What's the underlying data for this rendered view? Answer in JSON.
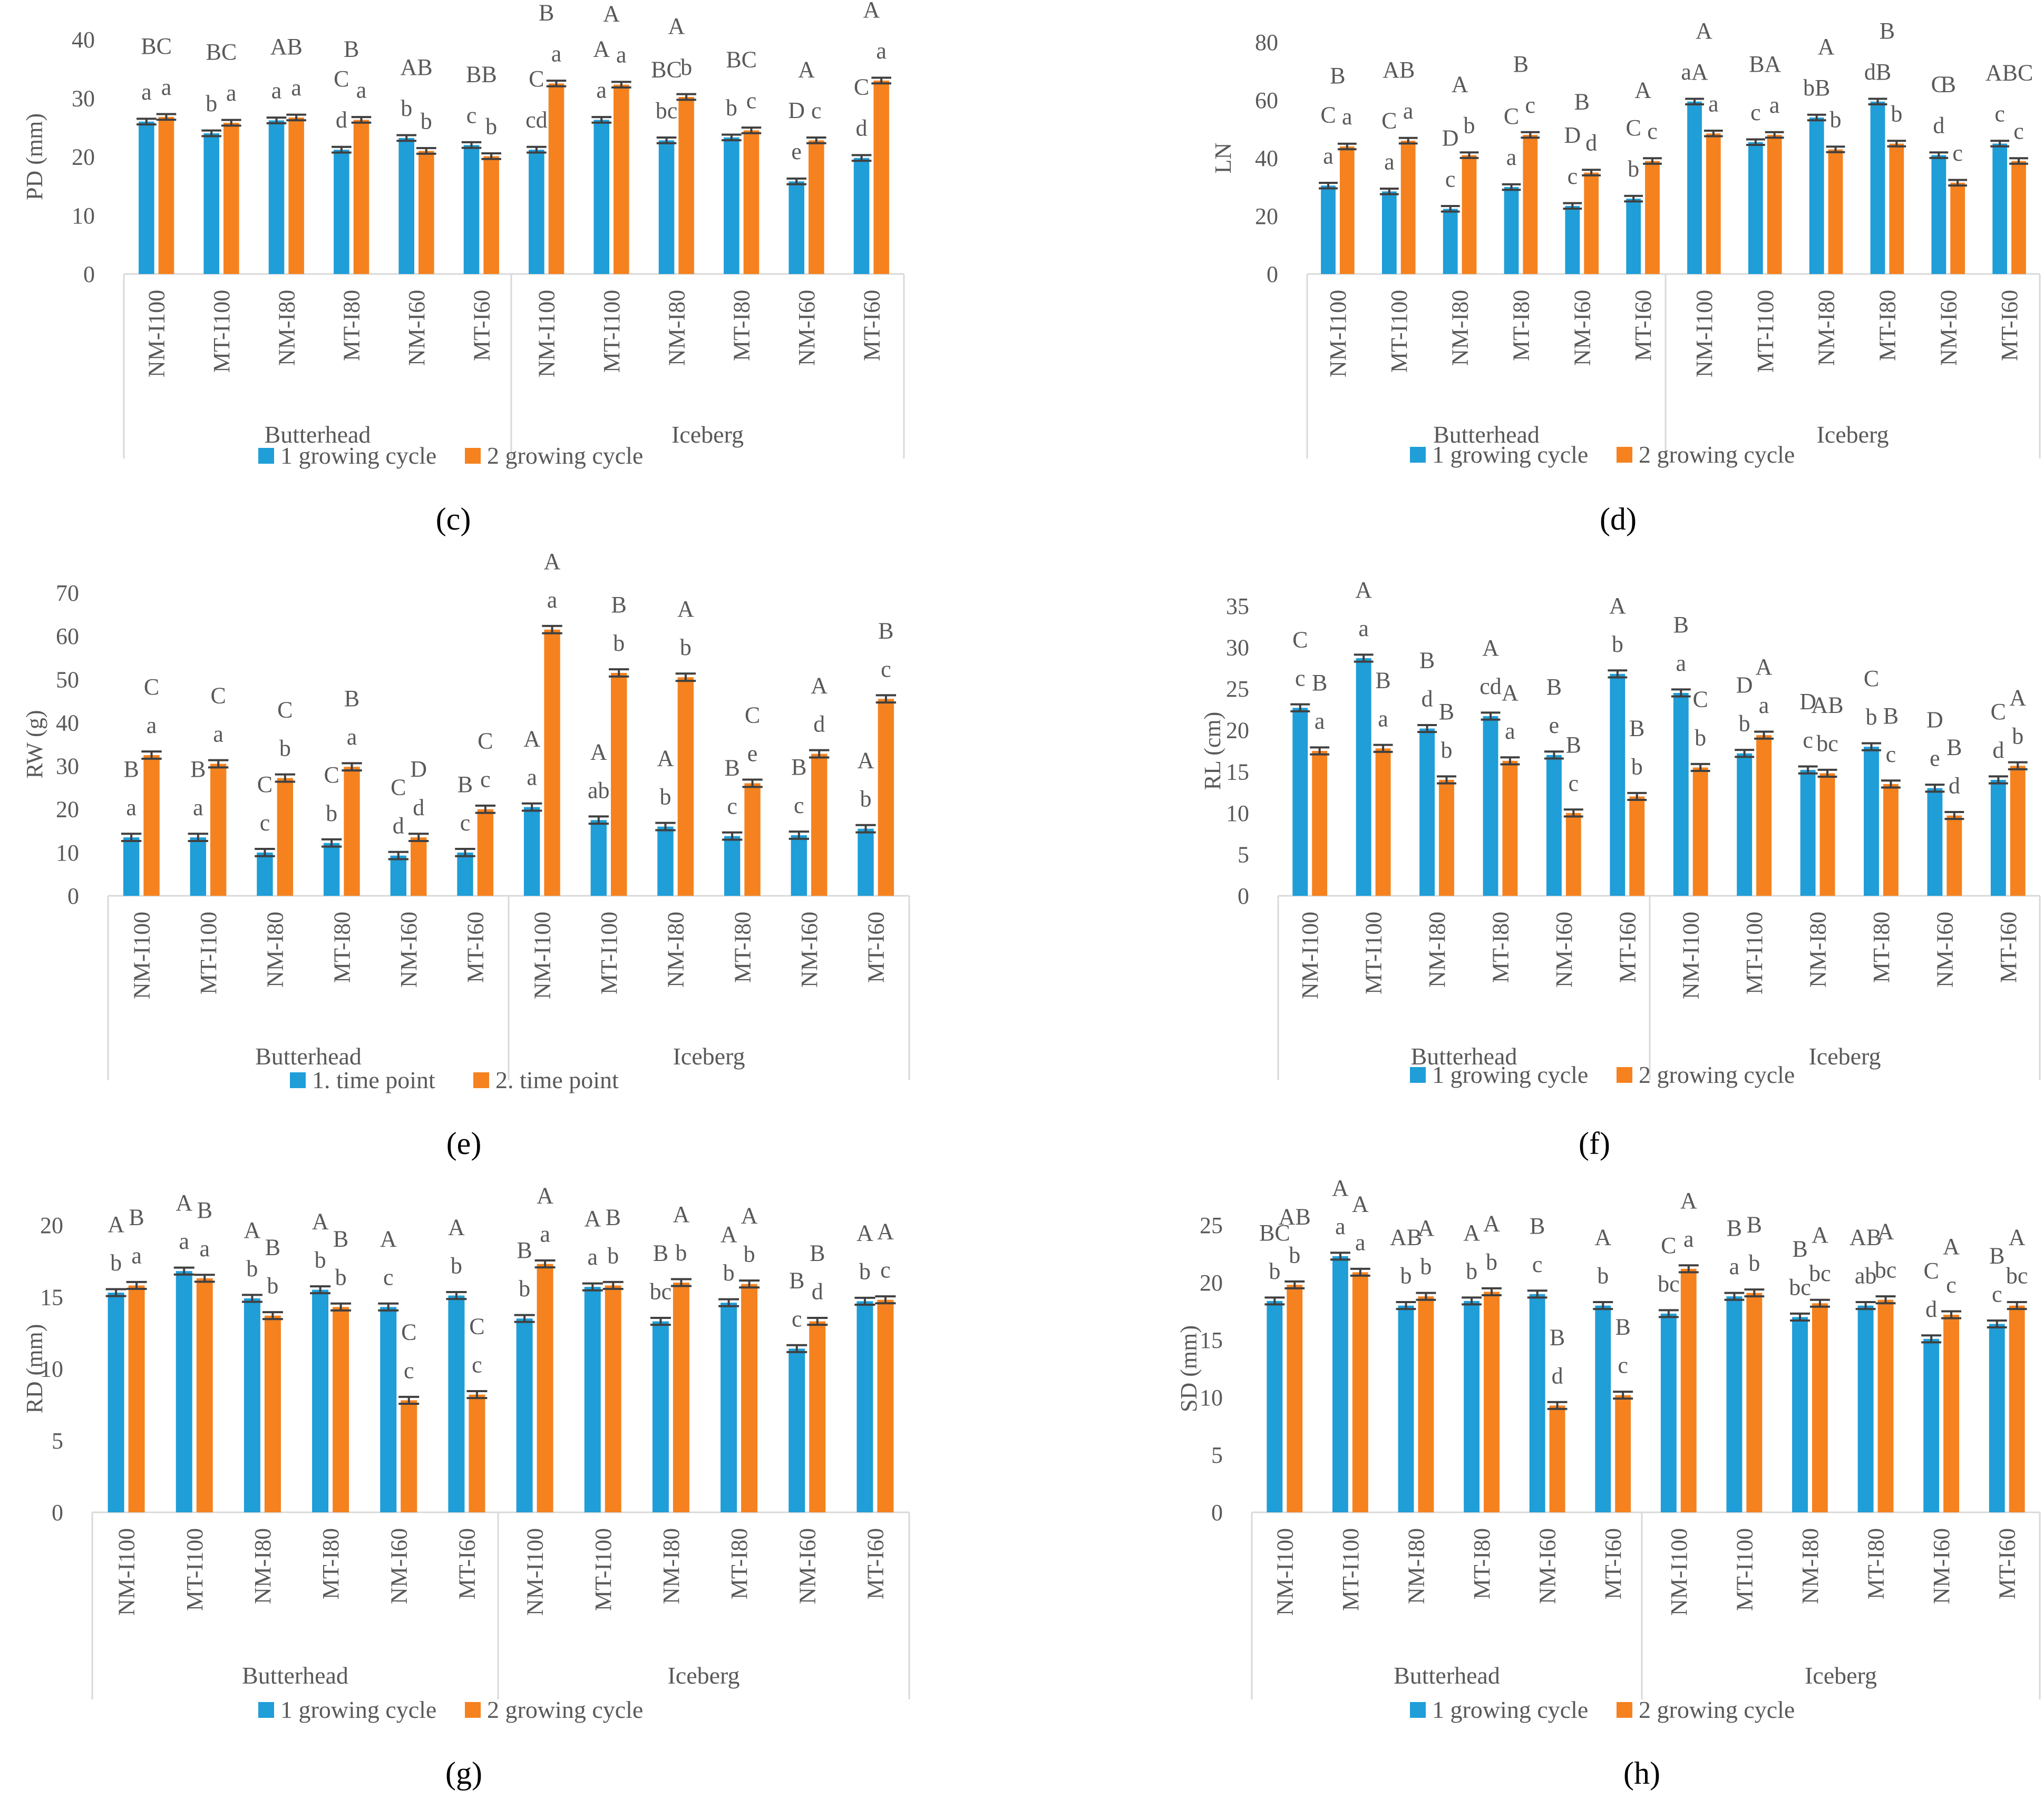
{
  "colors": {
    "series1": "#1f9ed8",
    "series2": "#f5821f",
    "axis": "#d9d9d9",
    "text": "#595959",
    "errorbar": "#404040"
  },
  "categories": [
    "NM-I100",
    "MT-I100",
    "NM-I80",
    "MT-I80",
    "NM-I60",
    "MT-I60"
  ],
  "groups": [
    "Butterhead",
    "Iceberg"
  ],
  "chart_data": [
    {
      "panel": "(c)",
      "type": "bar",
      "ylabel": "PD (mm)",
      "ylim": [
        0,
        40
      ],
      "yticks": [
        "0",
        "10",
        "20",
        "30",
        "40"
      ],
      "tickvals": [
        0,
        10,
        20,
        30,
        40
      ],
      "legend": [
        "1 growing cycle",
        "2 growing cycle"
      ],
      "series": [
        {
          "name": "1 growing cycle",
          "values": [
            26,
            24,
            26.2,
            21.2,
            23.2,
            22,
            21.2,
            26.3,
            22.8,
            23.3,
            15.8,
            19.8
          ],
          "letters": [
            "a",
            "b",
            "a",
            "d",
            "b",
            "c",
            "cd",
            "a",
            "bc",
            "b",
            "e",
            "d"
          ]
        },
        {
          "name": "2 growing cycle",
          "values": [
            26.8,
            25.8,
            26.7,
            26.3,
            21,
            20.1,
            32.5,
            32.3,
            30.2,
            24.5,
            22.8,
            33
          ],
          "letters": [
            "a",
            "a",
            "a",
            "a",
            "b",
            "b",
            "a",
            "a",
            "b",
            "c",
            "c",
            "a"
          ]
        }
      ],
      "upper": [
        "BC",
        "BC",
        "AB",
        "B",
        "AB",
        "BB",
        "B",
        "A",
        "A",
        "BC",
        "A",
        "A"
      ],
      "mid": [
        "",
        "",
        "",
        "C",
        "",
        "",
        "C",
        "A",
        "BC",
        "",
        "D",
        "C"
      ]
    },
    {
      "panel": "(d)",
      "type": "bar",
      "ylabel": "LN",
      "ylim": [
        0,
        80
      ],
      "yticks": [
        "0",
        "20",
        "40",
        "60",
        "80"
      ],
      "tickvals": [
        0,
        20,
        40,
        60,
        80
      ],
      "legend": [
        "1 growing cycle",
        "2 growing cycle"
      ],
      "series": [
        {
          "name": "1 growing cycle",
          "values": [
            30.5,
            28.5,
            22.5,
            30,
            23.5,
            26,
            59.5,
            45.5,
            54,
            59.5,
            41,
            45
          ],
          "letters": [
            "a",
            "a",
            "c",
            "a",
            "c",
            "b",
            "aA",
            "c",
            "bB",
            "dB",
            "d",
            "c"
          ]
        },
        {
          "name": "2 growing cycle",
          "values": [
            44,
            46,
            41,
            48,
            35,
            39,
            48.5,
            48,
            43,
            45,
            31.5,
            39
          ],
          "letters": [
            "a",
            "a",
            "b",
            "c",
            "d",
            "c",
            "a",
            "a",
            "b",
            "b",
            "c",
            "c"
          ]
        }
      ],
      "upper": [
        "B",
        "AB",
        "A",
        "B",
        "B",
        "A",
        "A",
        "BA",
        "A",
        "B",
        "B",
        "ABC"
      ],
      "mid": [
        "C",
        "C",
        "D",
        "C",
        "D",
        "C",
        "",
        "",
        "",
        "",
        "C",
        ""
      ]
    },
    {
      "panel": "(e)",
      "type": "bar",
      "ylabel": "RW (g)",
      "ylim": [
        0,
        70
      ],
      "yticks": [
        "0",
        "10",
        "20",
        "30",
        "40",
        "50",
        "60",
        "70"
      ],
      "tickvals": [
        0,
        10,
        20,
        30,
        40,
        50,
        60,
        70
      ],
      "legend": [
        "1. time point",
        "2. time point"
      ],
      "series": [
        {
          "name": "1. time point",
          "values": [
            13.5,
            13.5,
            10,
            12.2,
            9.3,
            10,
            20.5,
            17.5,
            16,
            13.8,
            14,
            15.5
          ],
          "letters": [
            "a",
            "a",
            "c",
            "b",
            "d",
            "c",
            "a",
            "ab",
            "b",
            "c",
            "c",
            "b"
          ]
        },
        {
          "name": "2. time point",
          "values": [
            32.5,
            30.5,
            27.2,
            29.8,
            13.5,
            20,
            61.5,
            51.5,
            50.5,
            26,
            32.8,
            45.5
          ],
          "letters": [
            "a",
            "a",
            "b",
            "a",
            "d",
            "c",
            "a",
            "b",
            "b",
            "e",
            "d",
            "c"
          ]
        }
      ],
      "upper1": [
        "B",
        "B",
        "C",
        "C",
        "C",
        "B",
        "A",
        "A",
        "A",
        "B",
        "B",
        "A"
      ],
      "upper2": [
        "C",
        "C",
        "C",
        "B",
        "D",
        "C",
        "A",
        "B",
        "A",
        "C",
        "A",
        "B"
      ]
    },
    {
      "panel": "(f)",
      "type": "bar",
      "ylabel": "RL (cm)",
      "ylim": [
        0,
        35
      ],
      "yticks": [
        "0",
        "5",
        "10",
        "15",
        "20",
        "25",
        "30",
        "35"
      ],
      "tickvals": [
        0,
        5,
        10,
        15,
        20,
        25,
        30,
        35
      ],
      "legend": [
        "1 growing cycle",
        "2 growing cycle"
      ],
      "series": [
        {
          "name": "1 growing cycle",
          "values": [
            22.7,
            28.7,
            20.2,
            21.7,
            17,
            26.8,
            24.5,
            17.2,
            15.2,
            18,
            13,
            14
          ],
          "letters": [
            "c",
            "a",
            "d",
            "cd",
            "e",
            "b",
            "a",
            "b",
            "c",
            "b",
            "e",
            "d"
          ]
        },
        {
          "name": "2 growing cycle",
          "values": [
            17.5,
            17.8,
            14,
            16.3,
            10,
            12,
            15.5,
            19.4,
            14.8,
            13.5,
            9.7,
            15.7
          ],
          "letters": [
            "a",
            "a",
            "b",
            "a",
            "c",
            "b",
            "b",
            "a",
            "bc",
            "c",
            "d",
            "b"
          ]
        }
      ],
      "upper1": [
        "C",
        "A",
        "B",
        "A",
        "B",
        "A",
        "B",
        "D",
        "D",
        "C",
        "D",
        "C"
      ],
      "upper2": [
        "B",
        "B",
        "B",
        "A",
        "B",
        "B",
        "C",
        "A",
        "AB",
        "B",
        "B",
        "A"
      ]
    },
    {
      "panel": "(g)",
      "type": "bar",
      "ylabel": "RD (mm)",
      "ylim": [
        0,
        20
      ],
      "yticks": [
        "0",
        "5",
        "10",
        "15",
        "20"
      ],
      "tickvals": [
        0,
        5,
        10,
        15,
        20
      ],
      "legend": [
        "1 growing cycle",
        "2 growing cycle"
      ],
      "series": [
        {
          "name": "1 growing cycle",
          "values": [
            15.3,
            16.8,
            14.9,
            15.5,
            14.3,
            15.1,
            13.5,
            15.7,
            13.3,
            14.6,
            11.4,
            14.7
          ],
          "letters": [
            "b",
            "a",
            "b",
            "b",
            "c",
            "b",
            "b",
            "a",
            "bc",
            "b",
            "c",
            "b"
          ]
        },
        {
          "name": "2 growing cycle",
          "values": [
            15.8,
            16.3,
            13.7,
            14.3,
            7.8,
            8.2,
            17.3,
            15.8,
            16,
            15.9,
            13.3,
            14.8
          ],
          "letters": [
            "a",
            "a",
            "b",
            "b",
            "c",
            "c",
            "a",
            "b",
            "b",
            "b",
            "d",
            "c"
          ]
        }
      ],
      "upper1": [
        "A",
        "A",
        "A",
        "A",
        "A",
        "A",
        "B",
        "A",
        "B",
        "A",
        "B",
        "A"
      ],
      "upper2": [
        "B",
        "B",
        "B",
        "B",
        "C",
        "C",
        "A",
        "B",
        "A",
        "A",
        "B",
        "A"
      ]
    },
    {
      "panel": "(h)",
      "type": "bar",
      "ylabel": "SD (mm)",
      "ylim": [
        0,
        25
      ],
      "yticks": [
        "0",
        "5",
        "10",
        "15",
        "20",
        "25"
      ],
      "tickvals": [
        0,
        5,
        10,
        15,
        20,
        25
      ],
      "legend": [
        "1 growing cycle",
        "2 growing cycle"
      ],
      "series": [
        {
          "name": "1 growing cycle",
          "values": [
            18.4,
            22.3,
            18,
            18.4,
            19,
            18,
            17.3,
            18.8,
            17,
            18,
            15.1,
            16.4
          ],
          "letters": [
            "b",
            "a",
            "b",
            "b",
            "c",
            "b",
            "bc",
            "a",
            "bc",
            "ab",
            "d",
            "c"
          ]
        },
        {
          "name": "2 growing cycle",
          "values": [
            19.8,
            20.9,
            18.8,
            19.2,
            9.3,
            10.2,
            21.2,
            19.1,
            18.2,
            18.5,
            17.2,
            18
          ],
          "letters": [
            "b",
            "a",
            "b",
            "b",
            "d",
            "c",
            "a",
            "b",
            "bc",
            "bc",
            "c",
            "bc"
          ]
        }
      ],
      "upper1": [
        "BC",
        "A",
        "AB",
        "A",
        "B",
        "A",
        "C",
        "B",
        "B",
        "AB",
        "C",
        "B"
      ],
      "upper2": [
        "AB",
        "A",
        "A",
        "A",
        "B",
        "B",
        "A",
        "B",
        "A",
        "A",
        "A",
        "A"
      ]
    }
  ]
}
